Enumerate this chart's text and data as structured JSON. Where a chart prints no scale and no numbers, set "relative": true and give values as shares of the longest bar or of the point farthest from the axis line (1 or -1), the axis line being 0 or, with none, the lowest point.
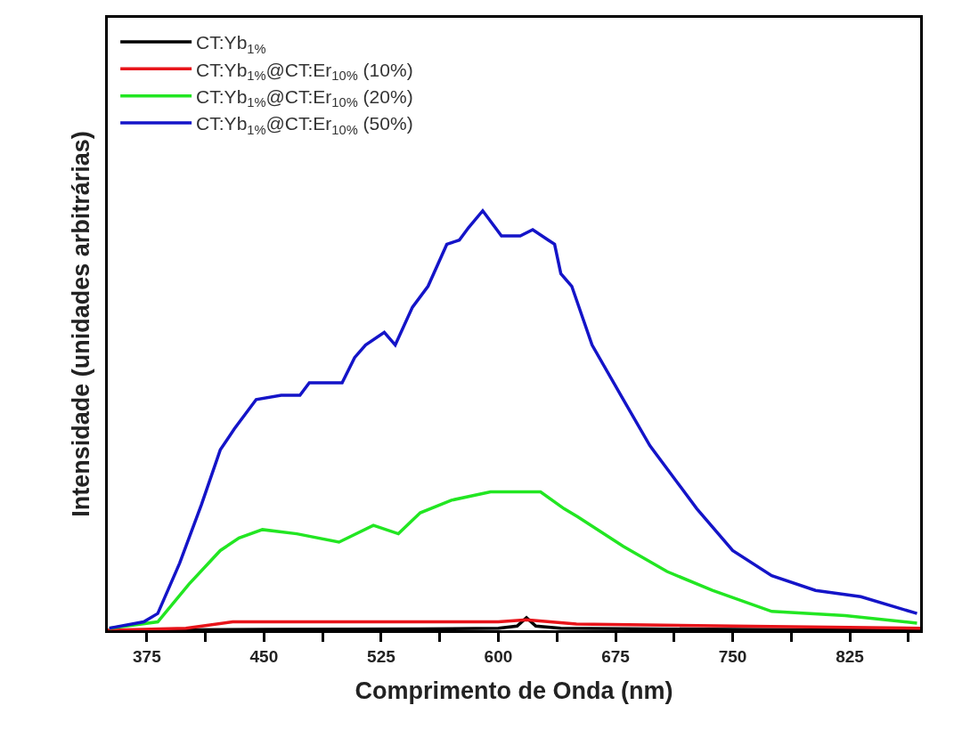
{
  "chart_data": {
    "type": "line",
    "xlabel": "Comprimento de Onda (nm)",
    "ylabel": "Intensidade (unidades arbitrárias)",
    "relative": true,
    "xlim": [
      350,
      870
    ],
    "xticks": [
      375,
      {
        "value": 412.5,
        "label": null
      },
      450,
      {
        "value": 487.5,
        "label": null
      },
      525,
      {
        "value": 562.5,
        "label": null
      },
      600,
      {
        "value": 637.5,
        "label": null
      },
      675,
      {
        "value": 712.5,
        "label": null
      },
      750,
      {
        "value": 787.5,
        "label": null
      },
      825,
      {
        "value": 862.5,
        "label": null
      }
    ],
    "legend": "top left",
    "marker": "none",
    "line_style": "solid",
    "series": [
      {
        "name": "CT:Yb$_{1%}$",
        "color": "#000000",
        "x": [
          350,
          450,
          550,
          600,
          612,
          618,
          624,
          640,
          750,
          870
        ],
        "values": [
          0,
          0.002,
          0.003,
          0.005,
          0.01,
          0.03,
          0.01,
          0.005,
          0.002,
          0
        ]
      },
      {
        "name": "CT:Yb$_{1%}$@CT:Er$_{10%}$ (10%)",
        "color": "#e8141a",
        "x": [
          350,
          400,
          430,
          500,
          560,
          600,
          618,
          650,
          750,
          870
        ],
        "values": [
          0,
          0.005,
          0.02,
          0.02,
          0.02,
          0.02,
          0.025,
          0.015,
          0.01,
          0.005
        ]
      },
      {
        "name": "CT:Yb$_{1%}$@CT:Er$_{10%}$ (20%)",
        "color": "#22e622",
        "x": [
          351,
          382,
          402,
          422,
          434,
          449,
          471,
          498,
          520,
          536,
          550,
          570,
          595,
          627,
          642,
          651,
          680,
          708,
          737,
          775,
          822,
          868
        ],
        "values": [
          0.005,
          0.02,
          0.11,
          0.19,
          0.22,
          0.24,
          0.23,
          0.21,
          0.25,
          0.23,
          0.28,
          0.31,
          0.33,
          0.33,
          0.29,
          0.27,
          0.2,
          0.14,
          0.095,
          0.045,
          0.035,
          0.017
        ]
      },
      {
        "name": "CT:Yb$_{1%}$@CT:Er$_{10%}$ (50%)",
        "color": "#1414c8",
        "x": [
          351,
          373,
          382,
          396,
          410,
          422,
          431,
          445,
          461,
          473,
          479,
          488,
          500,
          508,
          515,
          527,
          534,
          545,
          555,
          567,
          575,
          581,
          590,
          602,
          614,
          622,
          632,
          636,
          640,
          647,
          660,
          680,
          697,
          727,
          750,
          775,
          803,
          832,
          868
        ],
        "values": [
          0.005,
          0.02,
          0.04,
          0.16,
          0.3,
          0.43,
          0.48,
          0.55,
          0.56,
          0.56,
          0.59,
          0.59,
          0.59,
          0.65,
          0.68,
          0.71,
          0.68,
          0.77,
          0.82,
          0.92,
          0.93,
          0.96,
          1.0,
          0.94,
          0.94,
          0.955,
          0.93,
          0.92,
          0.85,
          0.82,
          0.68,
          0.55,
          0.44,
          0.29,
          0.19,
          0.13,
          0.095,
          0.08,
          0.04
        ]
      }
    ]
  }
}
